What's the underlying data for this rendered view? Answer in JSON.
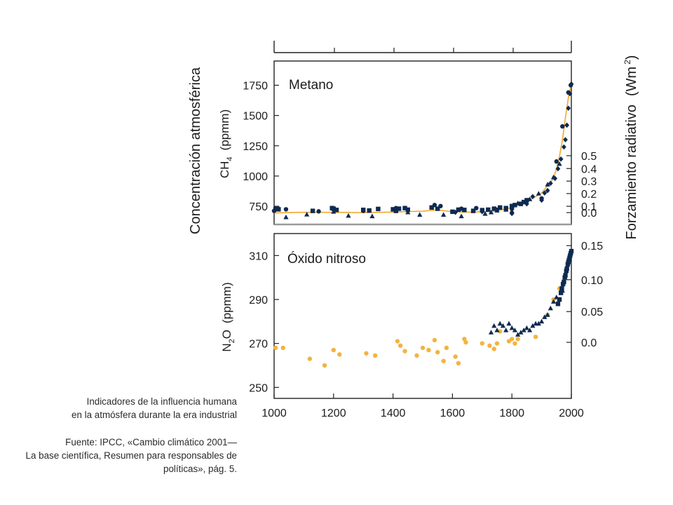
{
  "figure": {
    "left_axis_title": "Concentración atmosférica",
    "right_axis_title": "Forzamiento radiativo",
    "right_axis_unit": "(Wm",
    "right_axis_unit_exp": "2",
    "right_axis_unit_close": ")"
  },
  "caption": {
    "lines": [
      "Indicadores de la influencia humana",
      "en la atmósfera durante la era industrial"
    ],
    "source_lines": [
      "Fuente: IPCC, «Cambio climático 2001—",
      "La base científica, Resumen para responsables de",
      "políticas», pág. 5."
    ]
  },
  "colors": {
    "marker_dark": "#0e2a50",
    "marker_orange": "#f2b441",
    "fit_line": "#f0a830",
    "axis": "#222222",
    "bottom_axis_band": "#9a9a9a"
  },
  "chart_data": [
    {
      "type": "scatter",
      "title": "Metano",
      "ylabel_main": "CH",
      "ylabel_sub": "4",
      "ylabel_unit": "(ppmm)",
      "xlim": [
        1000,
        2000
      ],
      "ylim": [
        600,
        1950
      ],
      "yticks": [
        750,
        1000,
        1250,
        1500,
        1750
      ],
      "ytick_labels": [
        "750",
        "1000",
        "1250",
        "1500",
        "1750"
      ],
      "right_axis": {
        "label_values": [
          0.0,
          0.1,
          0.2,
          0.3,
          0.4,
          0.5
        ],
        "labels": [
          "0.0",
          "0.1",
          "0.2",
          "0.3",
          "0.4",
          "0.5"
        ],
        "positions_ppb": [
          698,
          750,
          855,
          958,
          1062,
          1168
        ]
      },
      "fit_line": {
        "x": [
          1000,
          1100,
          1200,
          1300,
          1400,
          1500,
          1550,
          1600,
          1650,
          1700,
          1750,
          1800,
          1850,
          1880,
          1900,
          1920,
          1940,
          1950,
          1960,
          1970,
          1980,
          1990,
          2000
        ],
        "y": [
          695,
          700,
          700,
          698,
          702,
          710,
          720,
          705,
          702,
          705,
          712,
          740,
          790,
          830,
          860,
          920,
          980,
          1060,
          1160,
          1300,
          1480,
          1650,
          1760
        ]
      },
      "series": [
        {
          "marker": "square",
          "x": [
            1005,
            1010,
            1015,
            1130,
            1195,
            1200,
            1210,
            1300,
            1320,
            1350,
            1400,
            1410,
            1420,
            1440,
            1450,
            1530,
            1550,
            1600,
            1620,
            1640,
            1670,
            1700,
            1720,
            1740,
            1760,
            1780,
            1800,
            1810,
            1830,
            1840,
            1850
          ],
          "y": [
            728,
            732,
            725,
            712,
            735,
            730,
            720,
            720,
            715,
            728,
            725,
            712,
            730,
            735,
            722,
            740,
            730,
            705,
            722,
            720,
            712,
            718,
            722,
            730,
            740,
            735,
            752,
            760,
            770,
            785,
            800
          ]
        },
        {
          "marker": "circle",
          "x": [
            1000,
            1040,
            1150,
            1300,
            1410,
            1540,
            1560,
            1630,
            1680,
            1750,
            1800,
            1830,
            1900,
            1950,
            1970,
            1990,
            1998
          ],
          "y": [
            712,
            725,
            708,
            712,
            735,
            760,
            752,
            730,
            735,
            722,
            730,
            770,
            815,
            1120,
            1410,
            1690,
            1750
          ]
        },
        {
          "marker": "triangle",
          "x": [
            1040,
            1110,
            1200,
            1250,
            1330,
            1450,
            1490,
            1570,
            1630,
            1710,
            1730,
            1750,
            1780,
            1800,
            1820,
            1860,
            1890,
            1920,
            1940,
            1960
          ],
          "y": [
            660,
            682,
            705,
            672,
            668,
            700,
            680,
            680,
            668,
            688,
            700,
            715,
            722,
            710,
            775,
            808,
            855,
            930,
            990,
            1100
          ]
        },
        {
          "marker": "diamond",
          "x": [
            1610,
            1700,
            1800,
            1850,
            1870,
            1900,
            1910,
            1920,
            1930,
            1945,
            1955,
            1965,
            1975,
            1980,
            1985,
            1990,
            1995,
            2000
          ],
          "y": [
            700,
            705,
            690,
            770,
            830,
            800,
            860,
            880,
            940,
            980,
            1060,
            1140,
            1240,
            1300,
            1420,
            1560,
            1680,
            1760
          ]
        }
      ]
    },
    {
      "type": "scatter",
      "title": "Óxido nitroso",
      "ylabel_main": "N",
      "ylabel_sub": "2",
      "ylabel_rest": "O",
      "ylabel_unit": "(ppmm)",
      "xlim": [
        1000,
        2000
      ],
      "ylim": [
        245,
        320
      ],
      "yticks": [
        250,
        270,
        290,
        310
      ],
      "ytick_labels": [
        "250",
        "270",
        "290",
        "310"
      ],
      "xticks": [
        1000,
        1200,
        1400,
        1600,
        1800,
        2000
      ],
      "xtick_labels": [
        "1000",
        "1200",
        "1400",
        "1600",
        "1800",
        "2000"
      ],
      "right_axis": {
        "label_values": [
          0.0,
          0.05,
          0.1,
          0.15
        ],
        "labels": [
          "0.0",
          "0.05",
          "0.10",
          "0.15"
        ],
        "positions_ppb": [
          270.5,
          284.5,
          299,
          314.5
        ]
      },
      "series": [
        {
          "marker": "circle",
          "color_key": "marker_orange",
          "x": [
            1005,
            1030,
            1120,
            1170,
            1200,
            1220,
            1310,
            1340,
            1415,
            1425,
            1440,
            1480,
            1500,
            1520,
            1540,
            1550,
            1570,
            1580,
            1610,
            1620,
            1640,
            1645,
            1700,
            1725,
            1740,
            1750,
            1760,
            1790,
            1800,
            1810,
            1820,
            1880,
            1920,
            1940,
            1960
          ],
          "y": [
            268,
            268,
            263,
            260,
            267,
            265,
            265.5,
            264.5,
            271,
            269,
            266.5,
            264.5,
            268,
            267,
            271.5,
            266,
            262,
            268,
            264,
            261,
            272,
            270.5,
            270,
            269,
            267.5,
            270,
            275.5,
            271,
            272,
            270,
            272,
            273,
            283,
            290,
            295
          ]
        },
        {
          "marker": "triangle",
          "color_key": "marker_dark",
          "x": [
            1730,
            1740,
            1750,
            1760,
            1770,
            1780,
            1790,
            1800,
            1810,
            1820,
            1830,
            1840,
            1850,
            1860,
            1870,
            1880,
            1890,
            1900,
            1910,
            1920,
            1930,
            1940,
            1950,
            1960,
            1970
          ],
          "y": [
            275,
            278,
            276,
            279,
            278,
            276,
            279,
            277,
            276,
            274,
            275,
            276,
            277,
            276,
            278,
            279,
            279,
            280,
            282,
            283,
            286,
            289,
            291,
            290,
            294
          ]
        },
        {
          "marker": "square",
          "color_key": "marker_dark",
          "x": [
            1955,
            1960,
            1965,
            1968,
            1972,
            1975,
            1978,
            1980,
            1983,
            1985,
            1988,
            1990,
            1992,
            1994,
            1996,
            1998,
            2000
          ],
          "y": [
            288,
            290,
            293,
            295,
            297,
            298,
            300,
            301,
            303,
            304,
            306,
            307,
            308,
            309,
            310,
            311,
            312
          ]
        }
      ]
    }
  ]
}
